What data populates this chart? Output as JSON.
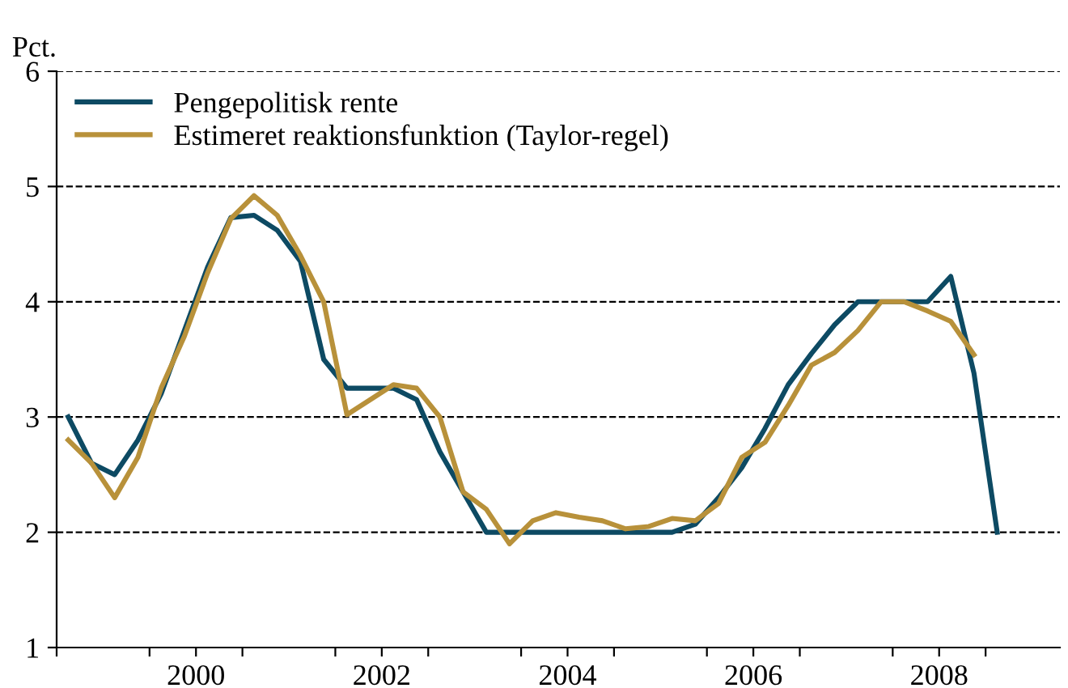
{
  "chart_data": {
    "type": "line",
    "ylabel": "Pct.",
    "x": [
      1999.125,
      1999.375,
      1999.625,
      1999.875,
      2000.125,
      2000.375,
      2000.625,
      2000.875,
      2001.125,
      2001.375,
      2001.625,
      2001.875,
      2002.125,
      2002.375,
      2002.625,
      2002.875,
      2003.125,
      2003.375,
      2003.625,
      2003.875,
      2004.125,
      2004.375,
      2004.625,
      2004.875,
      2005.125,
      2005.375,
      2005.625,
      2005.875,
      2006.125,
      2006.375,
      2006.625,
      2006.875,
      2007.125,
      2007.375,
      2007.625,
      2007.875,
      2008.125,
      2008.375,
      2008.625,
      2008.875,
      2009.125
    ],
    "series": [
      {
        "name": "Pengepolitisk rente",
        "color": "#0d4a63",
        "values": [
          3.0,
          2.6,
          2.5,
          2.8,
          3.2,
          3.75,
          4.3,
          4.73,
          4.75,
          4.62,
          4.35,
          3.5,
          3.25,
          3.25,
          3.25,
          3.15,
          2.7,
          2.35,
          2.0,
          2.0,
          2.0,
          2.0,
          2.0,
          2.0,
          2.0,
          2.0,
          2.0,
          2.07,
          2.3,
          2.56,
          2.9,
          3.28,
          3.55,
          3.8,
          4.0,
          4.0,
          4.0,
          4.0,
          4.22,
          3.38,
          2.0
        ]
      },
      {
        "name": "Estimeret reaktionsfunktion (Taylor-regel)",
        "color": "#b8913a",
        "values": [
          2.8,
          2.6,
          2.3,
          2.65,
          3.25,
          3.7,
          4.25,
          4.72,
          4.92,
          4.75,
          4.4,
          4.0,
          3.02,
          3.15,
          3.28,
          3.25,
          3.0,
          2.35,
          2.2,
          1.9,
          2.1,
          2.17,
          2.13,
          2.1,
          2.03,
          2.05,
          2.12,
          2.1,
          2.25,
          2.65,
          2.78,
          3.1,
          3.45,
          3.56,
          3.75,
          4.0,
          4.0,
          3.92,
          3.83,
          3.54,
          null
        ]
      }
    ],
    "xlim": [
      1999,
      2009.8
    ],
    "xticks": [
      {
        "value": 1999,
        "label": null
      },
      {
        "value": 2000,
        "label": null
      },
      {
        "value": 2000.5,
        "label": "2000"
      },
      {
        "value": 2001,
        "label": null
      },
      {
        "value": 2002,
        "label": null
      },
      {
        "value": 2002.5,
        "label": "2002"
      },
      {
        "value": 2003,
        "label": null
      },
      {
        "value": 2004,
        "label": null
      },
      {
        "value": 2004.5,
        "label": "2004"
      },
      {
        "value": 2005,
        "label": null
      },
      {
        "value": 2006,
        "label": null
      },
      {
        "value": 2006.5,
        "label": "2006"
      },
      {
        "value": 2007,
        "label": null
      },
      {
        "value": 2008,
        "label": null
      },
      {
        "value": 2008.5,
        "label": "2008"
      },
      {
        "value": 2009,
        "label": null
      }
    ],
    "ylim": [
      1,
      6
    ],
    "yticks": [
      1,
      2,
      3,
      4,
      5,
      6
    ],
    "grid": "y",
    "legend": "top left",
    "line_style": "solid",
    "marker": "none"
  }
}
